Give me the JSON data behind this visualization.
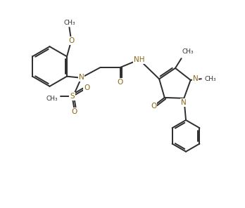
{
  "background": "#ffffff",
  "bond_color": "#2d2d2d",
  "atom_colors": {
    "N": "#8B6914",
    "O": "#8B6914",
    "S": "#8B6914",
    "C": "#2d2d2d"
  },
  "figsize": [
    3.48,
    2.96
  ],
  "dpi": 100,
  "xlim": [
    0,
    10
  ],
  "ylim": [
    0,
    8.5
  ]
}
